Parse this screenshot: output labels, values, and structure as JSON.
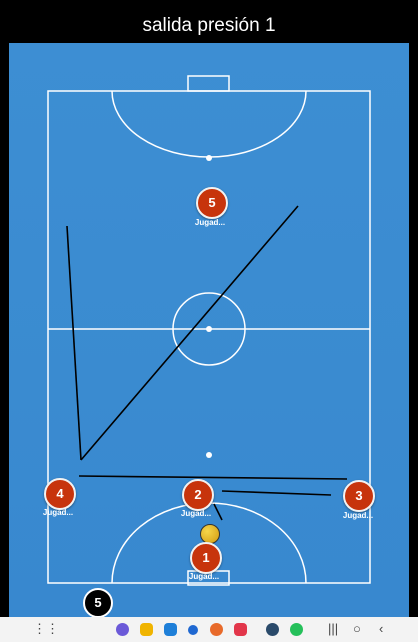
{
  "title": "salida presión 1",
  "players": [
    {
      "number": "5",
      "label": "Jugad...",
      "color": "#c7340c"
    },
    {
      "number": "4",
      "label": "Jugad...",
      "color": "#c7340c"
    },
    {
      "number": "2",
      "label": "Jugad...",
      "color": "#c7340c"
    },
    {
      "number": "3",
      "label": "Jugad...",
      "color": "#c7340c"
    },
    {
      "number": "1",
      "label": "Jugad...",
      "color": "#c7340c"
    }
  ],
  "token": {
    "number": "5"
  },
  "navbar": {
    "apps": [
      "grid-icon",
      "browser-icon",
      "files-icon",
      "calendar-icon",
      "messages-icon",
      "podcast-icon",
      "pocket-icon",
      "gallery-icon",
      "settings-icon",
      "whatsapp-icon"
    ],
    "controls": [
      "recents-button",
      "home-button",
      "back-button"
    ]
  }
}
